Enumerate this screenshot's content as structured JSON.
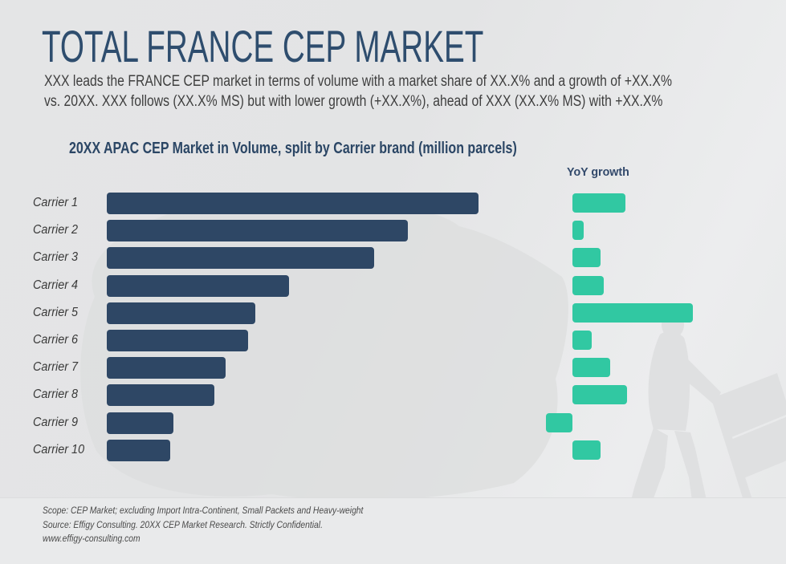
{
  "slide": {
    "title": "TOTAL FRANCE CEP MARKET",
    "subtitle": {
      "line1": "XXX leads the FRANCE CEP market in terms of volume with a market share of XX.X% and a growth of +XX.X%",
      "line2": "vs. 20XX. XXX follows (XX.X% MS) but with lower growth (+XX.X%), ahead of XXX (XX.X% MS) with +XX.X%"
    },
    "footer": {
      "scope_line": "Scope: CEP Market; excluding Import Intra-Continent, Small Packets and Heavy-weight",
      "source_line": "Source: Effigy Consulting. 20XX CEP Market Research. Strictly Confidential.",
      "website": "www.effigy-consulting.com"
    },
    "colors": {
      "bar_navy": "#2e4765",
      "bar_teal": "#31c8a2",
      "heading_blue": "#2e4d6e",
      "background_gray": "#e5e6e7"
    }
  },
  "chart_data": {
    "type": "bar",
    "orientation": "horizontal",
    "title": "20XX APAC CEP Market in Volume, split by Carrier brand (million parcels)",
    "growth_column_label": "YoY growth",
    "categories": [
      "Carrier 1",
      "Carrier 2",
      "Carrier 3",
      "Carrier 4",
      "Carrier 5",
      "Carrier 6",
      "Carrier 7",
      "Carrier 8",
      "Carrier 9",
      "Carrier 10"
    ],
    "series": [
      {
        "name": "Volume (million parcels)",
        "color": "#2e4765",
        "unit": "relative index, largest bar = 100 (no numeric axis shown)",
        "values": [
          100,
          81,
          72,
          49,
          40,
          38,
          32,
          29,
          18,
          17
        ]
      },
      {
        "name": "YoY growth",
        "color": "#31c8a2",
        "unit": "relative index, largest bar = 100 (no numeric labels shown; negative = decline)",
        "values": [
          44,
          9,
          23,
          26,
          100,
          16,
          31,
          45,
          -22,
          23
        ]
      }
    ],
    "legend_position": "column header right",
    "grid": false,
    "axis_labels_shown": false
  }
}
